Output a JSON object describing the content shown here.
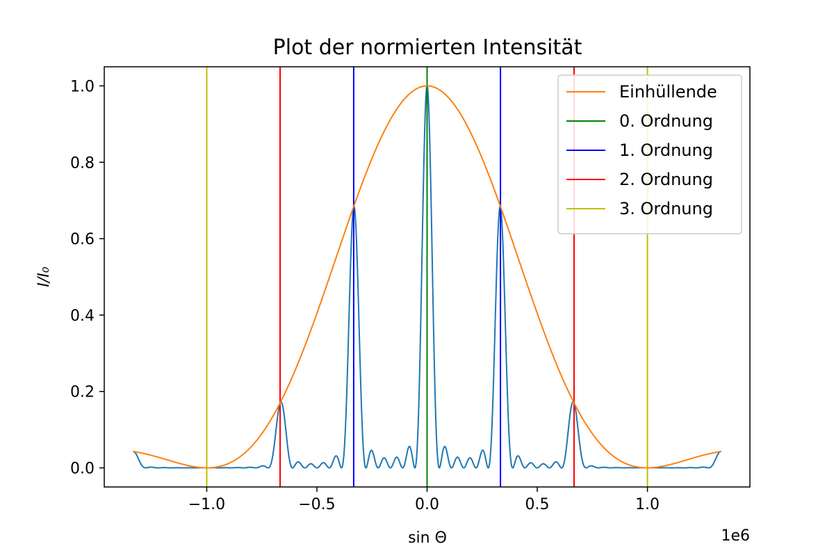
{
  "chart_data": {
    "type": "line",
    "title": "Plot der normierten Intensität",
    "xlabel": "sin Θ",
    "ylabel": "I/I₀",
    "xscale_label": "1e6",
    "xlim": [
      -1.465,
      1.465
    ],
    "ylim": [
      -0.05,
      1.05
    ],
    "x_unit_scale": 1000000,
    "xticks": [
      -1.0,
      -0.5,
      0.0,
      0.5,
      1.0
    ],
    "xtick_labels": [
      "−1.0",
      "−0.5",
      "0.0",
      "0.5",
      "1.0"
    ],
    "yticks": [
      0.0,
      0.2,
      0.4,
      0.6,
      0.8,
      1.0
    ],
    "ytick_labels": [
      "0.0",
      "0.2",
      "0.4",
      "0.6",
      "0.8",
      "1.0"
    ],
    "grid": false,
    "legend_position": "top-right",
    "x_range": [
      -1.335,
      1.335
    ],
    "series": [
      {
        "kind": "intensity",
        "color": "#1f77b4",
        "grating_lines": 6,
        "slit_zero_order": 3,
        "main_max_spacing": 0.333
      },
      {
        "kind": "envelope",
        "name": "Einhüllende",
        "color": "#ff7f0e",
        "slit_zero_order": 3,
        "main_max_spacing": 0.333
      }
    ],
    "order_lines": [
      {
        "name": "0. Ordnung",
        "color": "#008000",
        "x": [
          0.0
        ]
      },
      {
        "name": "1. Ordnung",
        "color": "#0000ff",
        "x": [
          -0.333,
          0.333
        ]
      },
      {
        "name": "2. Ordnung",
        "color": "#ff0000",
        "x": [
          -0.667,
          0.667
        ]
      },
      {
        "name": "3. Ordnung",
        "color": "#bfbf00",
        "x": [
          -1.0,
          1.0
        ]
      }
    ],
    "legend": [
      {
        "label": "Einhüllende",
        "color": "#ff7f0e"
      },
      {
        "label": "0. Ordnung",
        "color": "#008000"
      },
      {
        "label": "1. Ordnung",
        "color": "#0000ff"
      },
      {
        "label": "2. Ordnung",
        "color": "#ff0000"
      },
      {
        "label": "3. Ordnung",
        "color": "#bfbf00"
      }
    ]
  }
}
